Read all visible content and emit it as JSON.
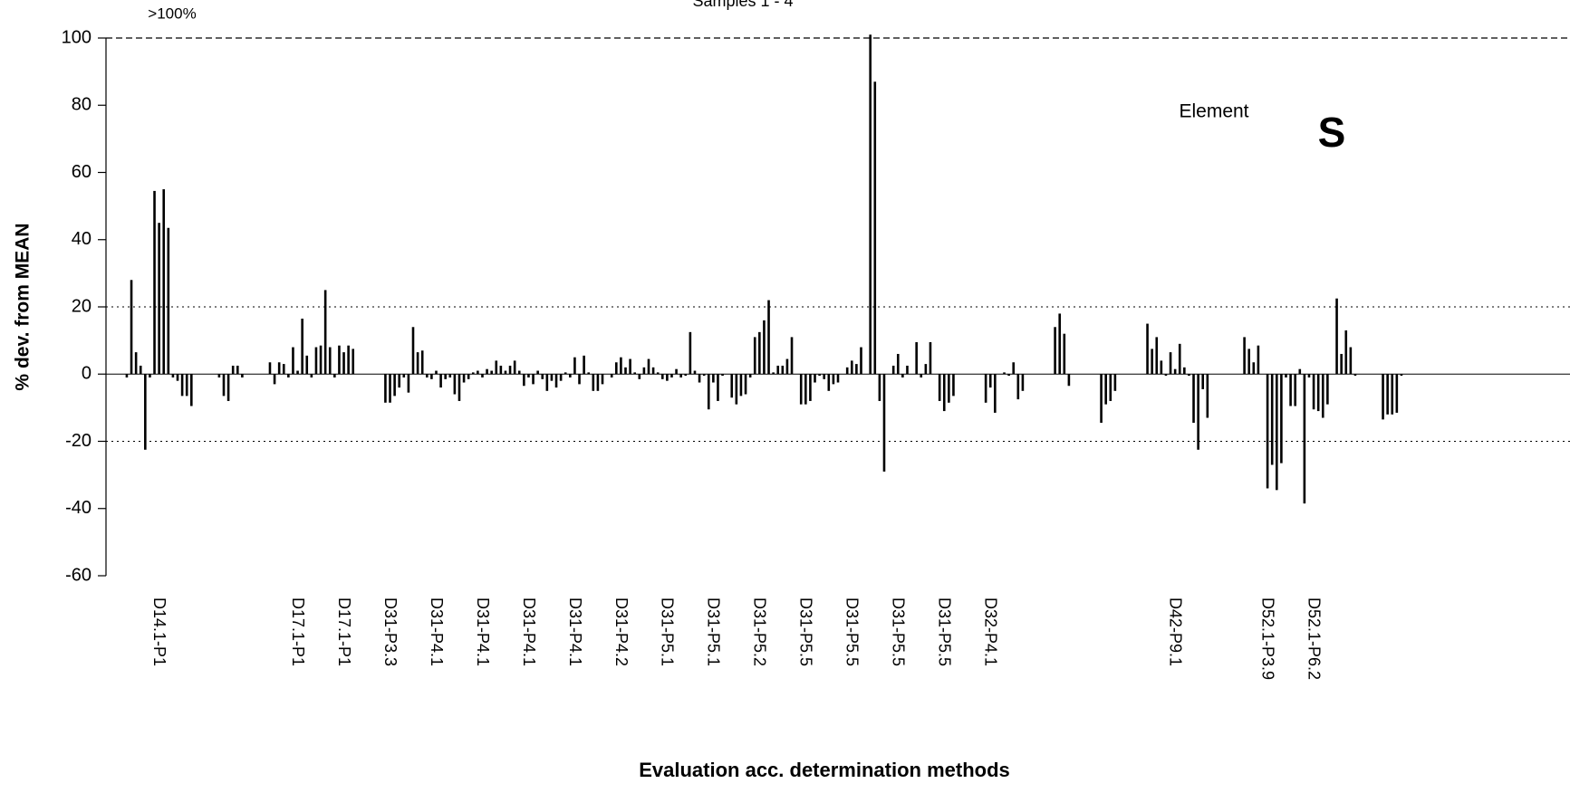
{
  "chart_data": {
    "type": "bar",
    "title": "Samples 1 - 4",
    "annotation": ">100%",
    "element_label": "Element",
    "element": "S",
    "ylabel": "% dev. from MEAN",
    "xlabel": "Evaluation acc. determination methods",
    "color": "#000000",
    "ylim": [
      -60,
      100
    ],
    "yticks": [
      -60,
      -40,
      -20,
      0,
      20,
      40,
      60,
      80,
      100
    ],
    "reference_lines": [
      {
        "value": 100,
        "style": "dashed"
      },
      {
        "value": 20,
        "style": "dotted"
      },
      {
        "value": -20,
        "style": "dotted"
      }
    ],
    "categories": [
      null,
      null,
      null,
      null,
      null,
      null,
      null,
      null,
      null,
      null,
      null,
      null,
      "D14.1-P1",
      null,
      null,
      null,
      null,
      null,
      null,
      null,
      null,
      null,
      null,
      null,
      null,
      null,
      null,
      null,
      null,
      null,
      null,
      null,
      null,
      null,
      null,
      null,
      null,
      null,
      null,
      null,
      null,
      null,
      "D17.1-P1",
      null,
      null,
      null,
      null,
      null,
      null,
      null,
      null,
      null,
      "D17.1-P1",
      null,
      null,
      null,
      null,
      null,
      null,
      null,
      null,
      null,
      "D31-P3.3",
      null,
      null,
      null,
      null,
      null,
      null,
      null,
      null,
      null,
      "D31-P4.1",
      null,
      null,
      null,
      null,
      null,
      null,
      null,
      null,
      null,
      "D31-P4.1",
      null,
      null,
      null,
      null,
      null,
      null,
      null,
      null,
      null,
      "D31-P4.1",
      null,
      null,
      null,
      null,
      null,
      null,
      null,
      null,
      null,
      "D31-P4.1",
      null,
      null,
      null,
      null,
      null,
      null,
      null,
      null,
      null,
      "D31-P4.2",
      null,
      null,
      null,
      null,
      null,
      null,
      null,
      null,
      null,
      "D31-P5.1",
      null,
      null,
      null,
      null,
      null,
      null,
      null,
      null,
      null,
      "D31-P5.1",
      null,
      null,
      null,
      null,
      null,
      null,
      null,
      null,
      null,
      "D31-P5.2",
      null,
      null,
      null,
      null,
      null,
      null,
      null,
      null,
      null,
      "D31-P5.5",
      null,
      null,
      null,
      null,
      null,
      null,
      null,
      null,
      null,
      "D31-P5.5",
      null,
      null,
      null,
      null,
      null,
      null,
      null,
      null,
      null,
      "D31-P5.5",
      null,
      null,
      null,
      null,
      null,
      null,
      null,
      null,
      null,
      "D31-P5.5",
      null,
      null,
      null,
      null,
      null,
      null,
      null,
      null,
      null,
      "D32-P4.1",
      null,
      null,
      null,
      null,
      null,
      null,
      null,
      null,
      null,
      null,
      null,
      null,
      null,
      null,
      null,
      null,
      null,
      null,
      null,
      null,
      null,
      null,
      null,
      null,
      null,
      null,
      null,
      null,
      null,
      null,
      null,
      null,
      null,
      null,
      null,
      null,
      null,
      null,
      null,
      "D42-P9.1",
      null,
      null,
      null,
      null,
      null,
      null,
      null,
      null,
      null,
      null,
      null,
      null,
      null,
      null,
      null,
      null,
      null,
      null,
      null,
      "D52.1-P3.9",
      null,
      null,
      null,
      null,
      null,
      null,
      null,
      null,
      null,
      "D52.1-P6.2",
      null,
      null,
      null,
      null,
      null,
      null,
      null,
      null,
      null,
      null,
      null,
      null,
      null,
      null,
      null,
      null,
      null,
      null,
      null,
      null,
      null,
      null,
      null,
      null,
      null,
      null,
      null,
      null,
      null,
      null,
      null,
      null,
      null,
      null,
      null,
      null,
      null,
      null,
      null,
      null,
      null,
      null,
      null,
      null,
      null,
      null,
      null,
      null,
      null,
      null,
      null,
      null,
      null,
      null
    ],
    "values": [
      null,
      null,
      null,
      null,
      -1,
      28,
      6.5,
      2.5,
      -22.5,
      -1,
      54.5,
      45,
      55,
      43.5,
      -1,
      -2,
      -6.5,
      -6.5,
      -9.5,
      null,
      null,
      null,
      null,
      null,
      -1,
      -6.5,
      -8,
      2.5,
      2.5,
      -1,
      null,
      null,
      null,
      null,
      0,
      3.5,
      -3,
      3.5,
      3,
      -1,
      8,
      1,
      16.5,
      5.5,
      -1,
      8,
      8.5,
      25,
      8,
      -1,
      8.5,
      6.5,
      8.5,
      7.5,
      null,
      null,
      null,
      null,
      null,
      null,
      -8.5,
      -8.5,
      -6.5,
      -4,
      -1,
      -5.5,
      14,
      6.5,
      7,
      -1,
      -1.5,
      1,
      -4,
      -1.5,
      -1,
      -6,
      -8,
      -2.5,
      -1.5,
      0.5,
      1,
      -1,
      1.5,
      1,
      4,
      2.5,
      1,
      2.5,
      4,
      1,
      -3.5,
      -1,
      -3,
      1,
      -1.5,
      -5,
      -2,
      -4,
      -2,
      0.5,
      -1,
      5,
      -3,
      5.5,
      0.5,
      -5,
      -5,
      -3,
      0,
      -1,
      3.5,
      5,
      2,
      4.5,
      0.5,
      -1.5,
      2,
      4.5,
      2,
      0.5,
      -1.5,
      -2,
      -1,
      1.5,
      -1,
      -0.5,
      12.5,
      1,
      -2.5,
      -0.5,
      -10.5,
      -2.5,
      -8,
      -0.5,
      0,
      -7,
      -9,
      -6.5,
      -6,
      -1,
      11,
      12.5,
      16,
      22,
      0.5,
      2.5,
      2.5,
      4.5,
      11,
      0,
      -9,
      -9,
      -8,
      -2.5,
      -0.5,
      -1.5,
      -5,
      -3,
      -2.5,
      0,
      2,
      4,
      3,
      8,
      0,
      101,
      87,
      -8,
      -29,
      0,
      2.5,
      6,
      -1,
      2.5,
      0,
      9.5,
      -1,
      3,
      9.5,
      0,
      -8,
      -11,
      -8.5,
      -6.5,
      null,
      null,
      null,
      null,
      null,
      null,
      -8.5,
      -4,
      -11.5,
      0,
      0.5,
      -0.5,
      3.5,
      -7.5,
      -5,
      null,
      null,
      null,
      null,
      null,
      null,
      14,
      18,
      12,
      -3.5,
      null,
      null,
      null,
      null,
      null,
      null,
      -14.5,
      -9,
      -8,
      -5,
      null,
      null,
      null,
      null,
      null,
      null,
      15,
      7.5,
      11,
      4,
      -0.5,
      6.5,
      1.5,
      9,
      2,
      -0.5,
      -14.5,
      -22.5,
      -4.5,
      -13,
      null,
      null,
      null,
      null,
      null,
      null,
      null,
      11,
      7.5,
      3.5,
      8.5,
      0,
      -34,
      -27,
      -34.5,
      -26.5,
      -1,
      -9.5,
      -9.5,
      1.5,
      -38.5,
      -1,
      -10.5,
      -11,
      -13,
      -9,
      0,
      22.5,
      6,
      13,
      8,
      -0.5,
      null,
      null,
      null,
      null,
      null,
      -13.5,
      -12,
      -12,
      -11.5,
      -0.5,
      null,
      null,
      null,
      null,
      null,
      null,
      null,
      null,
      null,
      null,
      null,
      null,
      null,
      null,
      null,
      null,
      null,
      null,
      null,
      null,
      null,
      null,
      null,
      null,
      null,
      null,
      null,
      null,
      null,
      null,
      null,
      null,
      null,
      null,
      null,
      null
    ]
  }
}
